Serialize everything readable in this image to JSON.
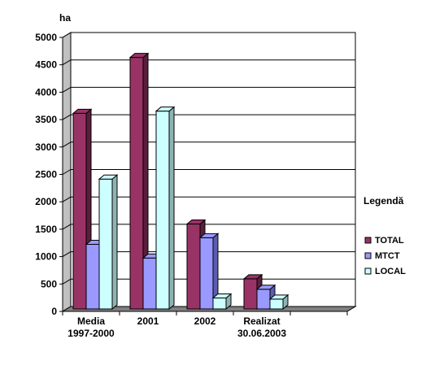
{
  "chart_data": {
    "type": "bar",
    "style": "3d-clustered-column",
    "ylabel": "ha",
    "ylim": [
      0,
      5000
    ],
    "ytick_step": 500,
    "yticks": [
      "0",
      "500",
      "1000",
      "1500",
      "2000",
      "2500",
      "3000",
      "3500",
      "4000",
      "4500",
      "5000"
    ],
    "grid": true,
    "categories": [
      [
        "Media",
        "1997-2000"
      ],
      [
        "2001"
      ],
      [
        "2002"
      ],
      [
        "Realizat",
        "30.06.2003"
      ],
      [
        ""
      ]
    ],
    "series": [
      {
        "name": "TOTAL",
        "color": "#993366",
        "side": "#5a1e3c",
        "values": [
          3570,
          4590,
          1550,
          550,
          null
        ]
      },
      {
        "name": "MTCT",
        "color": "#9999ff",
        "side": "#5c5cb0",
        "values": [
          1180,
          930,
          1300,
          360,
          null
        ]
      },
      {
        "name": "LOCAL",
        "color": "#ccffff",
        "side": "#8fb3b3",
        "values": [
          2370,
          3610,
          200,
          180,
          null
        ]
      }
    ],
    "legend": {
      "title": "Legendă",
      "position": "right"
    }
  }
}
